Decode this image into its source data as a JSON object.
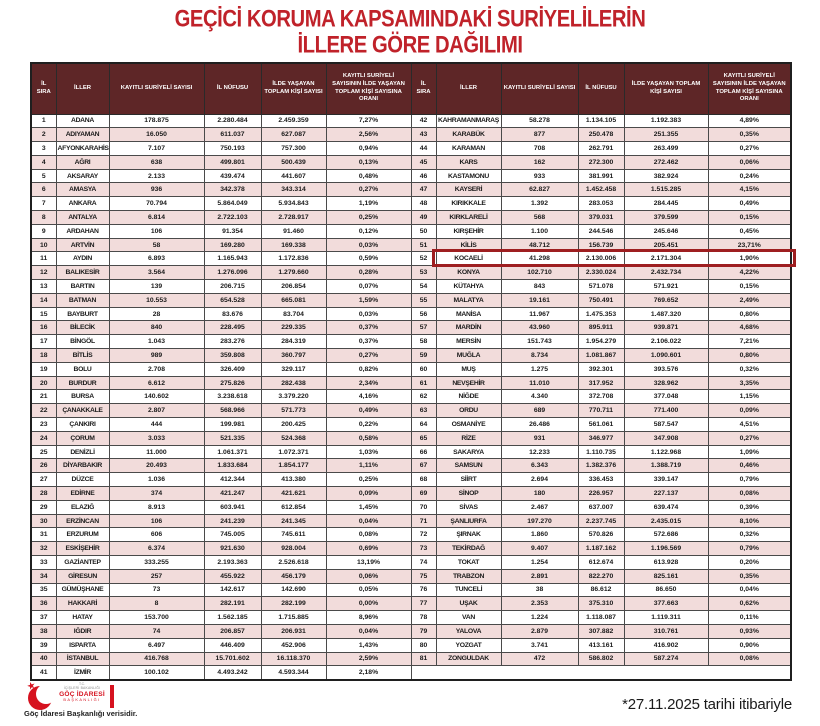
{
  "title": {
    "line1": "GEÇİCİ KORUMA KAPSAMINDAKİ SURİYELİLERİN",
    "line2": "İLLERE GÖRE DAĞILIMI"
  },
  "table": {
    "headers": [
      "İL SIRA",
      "İLLER",
      "KAYITLI SURİYELİ SAYISI",
      "İL NÜFUSU",
      "İLDE YAŞAYAN TOPLAM KİŞİ SAYISI",
      "KAYITLI SURİYELİ SAYISININ İLDE YAŞAYAN TOPLAM KİŞİ SAYISINA ORANI"
    ],
    "highlight_row": "52",
    "left_rows": [
      [
        "1",
        "ADANA",
        "178.875",
        "2.280.484",
        "2.459.359",
        "7,27%"
      ],
      [
        "2",
        "ADIYAMAN",
        "16.050",
        "611.037",
        "627.087",
        "2,56%"
      ],
      [
        "3",
        "AFYONKARAHİSAR",
        "7.107",
        "750.193",
        "757.300",
        "0,94%"
      ],
      [
        "4",
        "AĞRI",
        "638",
        "499.801",
        "500.439",
        "0,13%"
      ],
      [
        "5",
        "AKSARAY",
        "2.133",
        "439.474",
        "441.607",
        "0,48%"
      ],
      [
        "6",
        "AMASYA",
        "936",
        "342.378",
        "343.314",
        "0,27%"
      ],
      [
        "7",
        "ANKARA",
        "70.794",
        "5.864.049",
        "5.934.843",
        "1,19%"
      ],
      [
        "8",
        "ANTALYA",
        "6.814",
        "2.722.103",
        "2.728.917",
        "0,25%"
      ],
      [
        "9",
        "ARDAHAN",
        "106",
        "91.354",
        "91.460",
        "0,12%"
      ],
      [
        "10",
        "ARTVİN",
        "58",
        "169.280",
        "169.338",
        "0,03%"
      ],
      [
        "11",
        "AYDIN",
        "6.893",
        "1.165.943",
        "1.172.836",
        "0,59%"
      ],
      [
        "12",
        "BALIKESİR",
        "3.564",
        "1.276.096",
        "1.279.660",
        "0,28%"
      ],
      [
        "13",
        "BARTIN",
        "139",
        "206.715",
        "206.854",
        "0,07%"
      ],
      [
        "14",
        "BATMAN",
        "10.553",
        "654.528",
        "665.081",
        "1,59%"
      ],
      [
        "15",
        "BAYBURT",
        "28",
        "83.676",
        "83.704",
        "0,03%"
      ],
      [
        "16",
        "BİLECİK",
        "840",
        "228.495",
        "229.335",
        "0,37%"
      ],
      [
        "17",
        "BİNGÖL",
        "1.043",
        "283.276",
        "284.319",
        "0,37%"
      ],
      [
        "18",
        "BİTLİS",
        "989",
        "359.808",
        "360.797",
        "0,27%"
      ],
      [
        "19",
        "BOLU",
        "2.708",
        "326.409",
        "329.117",
        "0,82%"
      ],
      [
        "20",
        "BURDUR",
        "6.612",
        "275.826",
        "282.438",
        "2,34%"
      ],
      [
        "21",
        "BURSA",
        "140.602",
        "3.238.618",
        "3.379.220",
        "4,16%"
      ],
      [
        "22",
        "ÇANAKKALE",
        "2.807",
        "568.966",
        "571.773",
        "0,49%"
      ],
      [
        "23",
        "ÇANKIRI",
        "444",
        "199.981",
        "200.425",
        "0,22%"
      ],
      [
        "24",
        "ÇORUM",
        "3.033",
        "521.335",
        "524.368",
        "0,58%"
      ],
      [
        "25",
        "DENİZLİ",
        "11.000",
        "1.061.371",
        "1.072.371",
        "1,03%"
      ],
      [
        "26",
        "DİYARBAKIR",
        "20.493",
        "1.833.684",
        "1.854.177",
        "1,11%"
      ],
      [
        "27",
        "DÜZCE",
        "1.036",
        "412.344",
        "413.380",
        "0,25%"
      ],
      [
        "28",
        "EDİRNE",
        "374",
        "421.247",
        "421.621",
        "0,09%"
      ],
      [
        "29",
        "ELAZIĞ",
        "8.913",
        "603.941",
        "612.854",
        "1,45%"
      ],
      [
        "30",
        "ERZİNCAN",
        "106",
        "241.239",
        "241.345",
        "0,04%"
      ],
      [
        "31",
        "ERZURUM",
        "606",
        "745.005",
        "745.611",
        "0,08%"
      ],
      [
        "32",
        "ESKİŞEHİR",
        "6.374",
        "921.630",
        "928.004",
        "0,69%"
      ],
      [
        "33",
        "GAZİANTEP",
        "333.255",
        "2.193.363",
        "2.526.618",
        "13,19%"
      ],
      [
        "34",
        "GİRESUN",
        "257",
        "455.922",
        "456.179",
        "0,06%"
      ],
      [
        "35",
        "GÜMÜŞHANE",
        "73",
        "142.617",
        "142.690",
        "0,05%"
      ],
      [
        "36",
        "HAKKARİ",
        "8",
        "282.191",
        "282.199",
        "0,00%"
      ],
      [
        "37",
        "HATAY",
        "153.700",
        "1.562.185",
        "1.715.885",
        "8,96%"
      ],
      [
        "38",
        "IĞDIR",
        "74",
        "206.857",
        "206.931",
        "0,04%"
      ],
      [
        "39",
        "ISPARTA",
        "6.497",
        "446.409",
        "452.906",
        "1,43%"
      ],
      [
        "40",
        "İSTANBUL",
        "416.768",
        "15.701.602",
        "16.118.370",
        "2,59%"
      ],
      [
        "41",
        "İZMİR",
        "100.102",
        "4.493.242",
        "4.593.344",
        "2,18%"
      ]
    ],
    "right_rows": [
      [
        "42",
        "KAHRAMANMARAŞ",
        "58.278",
        "1.134.105",
        "1.192.383",
        "4,89%"
      ],
      [
        "43",
        "KARABÜK",
        "877",
        "250.478",
        "251.355",
        "0,35%"
      ],
      [
        "44",
        "KARAMAN",
        "708",
        "262.791",
        "263.499",
        "0,27%"
      ],
      [
        "45",
        "KARS",
        "162",
        "272.300",
        "272.462",
        "0,06%"
      ],
      [
        "46",
        "KASTAMONU",
        "933",
        "381.991",
        "382.924",
        "0,24%"
      ],
      [
        "47",
        "KAYSERİ",
        "62.827",
        "1.452.458",
        "1.515.285",
        "4,15%"
      ],
      [
        "48",
        "KIRIKKALE",
        "1.392",
        "283.053",
        "284.445",
        "0,49%"
      ],
      [
        "49",
        "KIRKLARELİ",
        "568",
        "379.031",
        "379.599",
        "0,15%"
      ],
      [
        "50",
        "KIRŞEHİR",
        "1.100",
        "244.546",
        "245.646",
        "0,45%"
      ],
      [
        "51",
        "KİLİS",
        "48.712",
        "156.739",
        "205.451",
        "23,71%"
      ],
      [
        "52",
        "KOCAELİ",
        "41.298",
        "2.130.006",
        "2.171.304",
        "1,90%"
      ],
      [
        "53",
        "KONYA",
        "102.710",
        "2.330.024",
        "2.432.734",
        "4,22%"
      ],
      [
        "54",
        "KÜTAHYA",
        "843",
        "571.078",
        "571.921",
        "0,15%"
      ],
      [
        "55",
        "MALATYA",
        "19.161",
        "750.491",
        "769.652",
        "2,49%"
      ],
      [
        "56",
        "MANİSA",
        "11.967",
        "1.475.353",
        "1.487.320",
        "0,80%"
      ],
      [
        "57",
        "MARDİN",
        "43.960",
        "895.911",
        "939.871",
        "4,68%"
      ],
      [
        "58",
        "MERSİN",
        "151.743",
        "1.954.279",
        "2.106.022",
        "7,21%"
      ],
      [
        "59",
        "MUĞLA",
        "8.734",
        "1.081.867",
        "1.090.601",
        "0,80%"
      ],
      [
        "60",
        "MUŞ",
        "1.275",
        "392.301",
        "393.576",
        "0,32%"
      ],
      [
        "61",
        "NEVŞEHİR",
        "11.010",
        "317.952",
        "328.962",
        "3,35%"
      ],
      [
        "62",
        "NİĞDE",
        "4.340",
        "372.708",
        "377.048",
        "1,15%"
      ],
      [
        "63",
        "ORDU",
        "689",
        "770.711",
        "771.400",
        "0,09%"
      ],
      [
        "64",
        "OSMANİYE",
        "26.486",
        "561.061",
        "587.547",
        "4,51%"
      ],
      [
        "65",
        "RİZE",
        "931",
        "346.977",
        "347.908",
        "0,27%"
      ],
      [
        "66",
        "SAKARYA",
        "12.233",
        "1.110.735",
        "1.122.968",
        "1,09%"
      ],
      [
        "67",
        "SAMSUN",
        "6.343",
        "1.382.376",
        "1.388.719",
        "0,46%"
      ],
      [
        "68",
        "SİİRT",
        "2.694",
        "336.453",
        "339.147",
        "0,79%"
      ],
      [
        "69",
        "SİNOP",
        "180",
        "226.957",
        "227.137",
        "0,08%"
      ],
      [
        "70",
        "SİVAS",
        "2.467",
        "637.007",
        "639.474",
        "0,39%"
      ],
      [
        "71",
        "ŞANLIURFA",
        "197.270",
        "2.237.745",
        "2.435.015",
        "8,10%"
      ],
      [
        "72",
        "ŞIRNAK",
        "1.860",
        "570.826",
        "572.686",
        "0,32%"
      ],
      [
        "73",
        "TEKİRDAĞ",
        "9.407",
        "1.187.162",
        "1.196.569",
        "0,79%"
      ],
      [
        "74",
        "TOKAT",
        "1.254",
        "612.674",
        "613.928",
        "0,20%"
      ],
      [
        "75",
        "TRABZON",
        "2.891",
        "822.270",
        "825.161",
        "0,35%"
      ],
      [
        "76",
        "TUNCELİ",
        "38",
        "86.612",
        "86.650",
        "0,04%"
      ],
      [
        "77",
        "UŞAK",
        "2.353",
        "375.310",
        "377.663",
        "0,62%"
      ],
      [
        "78",
        "VAN",
        "1.224",
        "1.118.087",
        "1.119.311",
        "0,11%"
      ],
      [
        "79",
        "YALOVA",
        "2.879",
        "307.882",
        "310.761",
        "0,93%"
      ],
      [
        "80",
        "YOZGAT",
        "3.741",
        "413.161",
        "416.902",
        "0,90%"
      ],
      [
        "81",
        "ZONGULDAK",
        "472",
        "586.802",
        "587.274",
        "0,08%"
      ]
    ]
  },
  "footer": {
    "date_note": "*27.11.2025 tarihi itibariyle",
    "logo": {
      "tc": "T.C.",
      "ministry": "İÇİŞLERİ BAKANLIĞI",
      "agency": "GÖÇ İDARESİ",
      "presidency": "BAŞKANLIĞI",
      "source_note": "Göç İdaresi Başkanlığı verisidir."
    }
  },
  "colors": {
    "title_red": "#C0222A",
    "header_bg": "#5E2627",
    "row_pink": "#F2DCDB",
    "highlight_border": "#9E1E20",
    "logo_red": "#D6121F"
  }
}
